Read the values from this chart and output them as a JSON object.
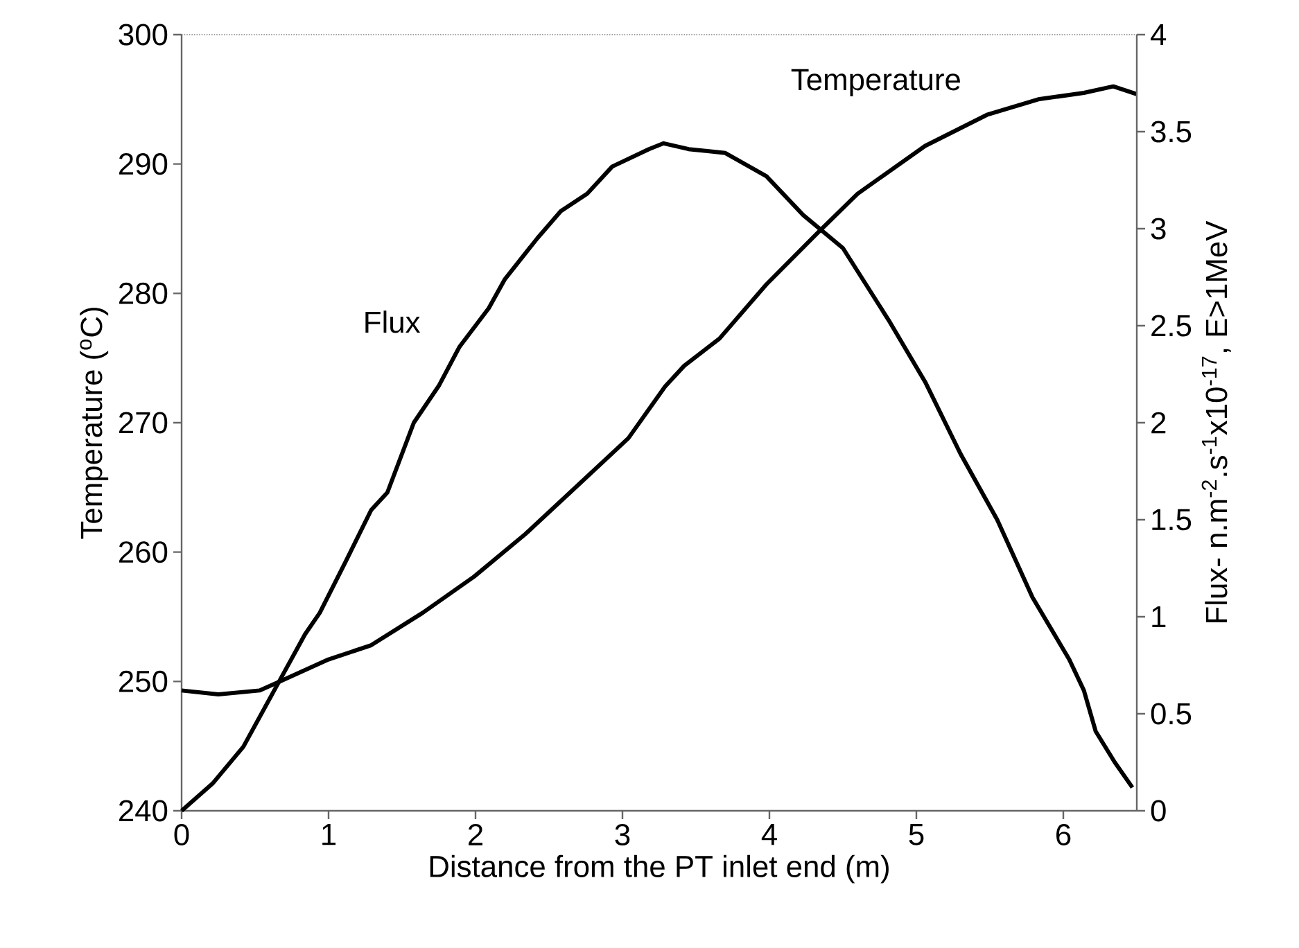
{
  "chart_data": {
    "type": "line",
    "xlabel": "Distance from the PT inlet end (m)",
    "ylabel": "Temperature ($^{o}$C)",
    "y2label": "Flux- n.m$^{-2}$.s$^{-1}$x10$^{-17}$, E>1MeV",
    "xlim": [
      0,
      6.5
    ],
    "xticks": [
      0,
      1,
      2,
      3,
      4,
      5,
      6
    ],
    "ylim": [
      240,
      300
    ],
    "yticks": [
      240,
      250,
      260,
      270,
      280,
      290,
      300
    ],
    "y2lim": [
      0,
      4
    ],
    "y2ticks": [
      0,
      0.5,
      1,
      1.5,
      2,
      2.5,
      3,
      3.5,
      4
    ],
    "marker": "none",
    "line_style": "solid",
    "series": [
      {
        "color": "#000000",
        "x": [
          0,
          0.25,
          0.53,
          0.67,
          1.0,
          1.29,
          1.64,
          1.99,
          2.34,
          2.69,
          3.04,
          3.29,
          3.42,
          3.66,
          3.98,
          4.33,
          4.6,
          5.06,
          5.48,
          5.83,
          6.14,
          6.34,
          6.5
        ],
        "values": [
          249.3,
          249.0,
          249.3,
          250.0,
          251.7,
          252.8,
          255.3,
          258.1,
          261.4,
          265.1,
          268.8,
          272.8,
          274.4,
          276.5,
          280.7,
          284.7,
          287.7,
          291.4,
          293.8,
          295.0,
          295.5,
          296.0,
          295.4
        ]
      },
      {
        "color": "#000000",
        "axis": "y2",
        "x": [
          0,
          0.21,
          0.42,
          0.63,
          0.84,
          0.94,
          1.12,
          1.29,
          1.4,
          1.58,
          1.75,
          1.89,
          2.09,
          2.2,
          2.42,
          2.58,
          2.76,
          2.93,
          3.18,
          3.28,
          3.45,
          3.7,
          3.98,
          4.23,
          4.5,
          4.81,
          5.06,
          5.3,
          5.55,
          5.79,
          6.04,
          6.14,
          6.22,
          6.35,
          6.47
        ],
        "values": [
          0,
          0.14,
          0.33,
          0.62,
          0.91,
          1.02,
          1.29,
          1.55,
          1.64,
          2.0,
          2.19,
          2.39,
          2.59,
          2.74,
          2.95,
          3.09,
          3.18,
          3.32,
          3.41,
          3.44,
          3.41,
          3.39,
          3.27,
          3.07,
          2.9,
          2.53,
          2.21,
          1.84,
          1.5,
          1.1,
          0.78,
          0.62,
          0.41,
          0.25,
          0.12
        ]
      }
    ],
    "annotations": [
      "Flux",
      "Temperature"
    ]
  }
}
